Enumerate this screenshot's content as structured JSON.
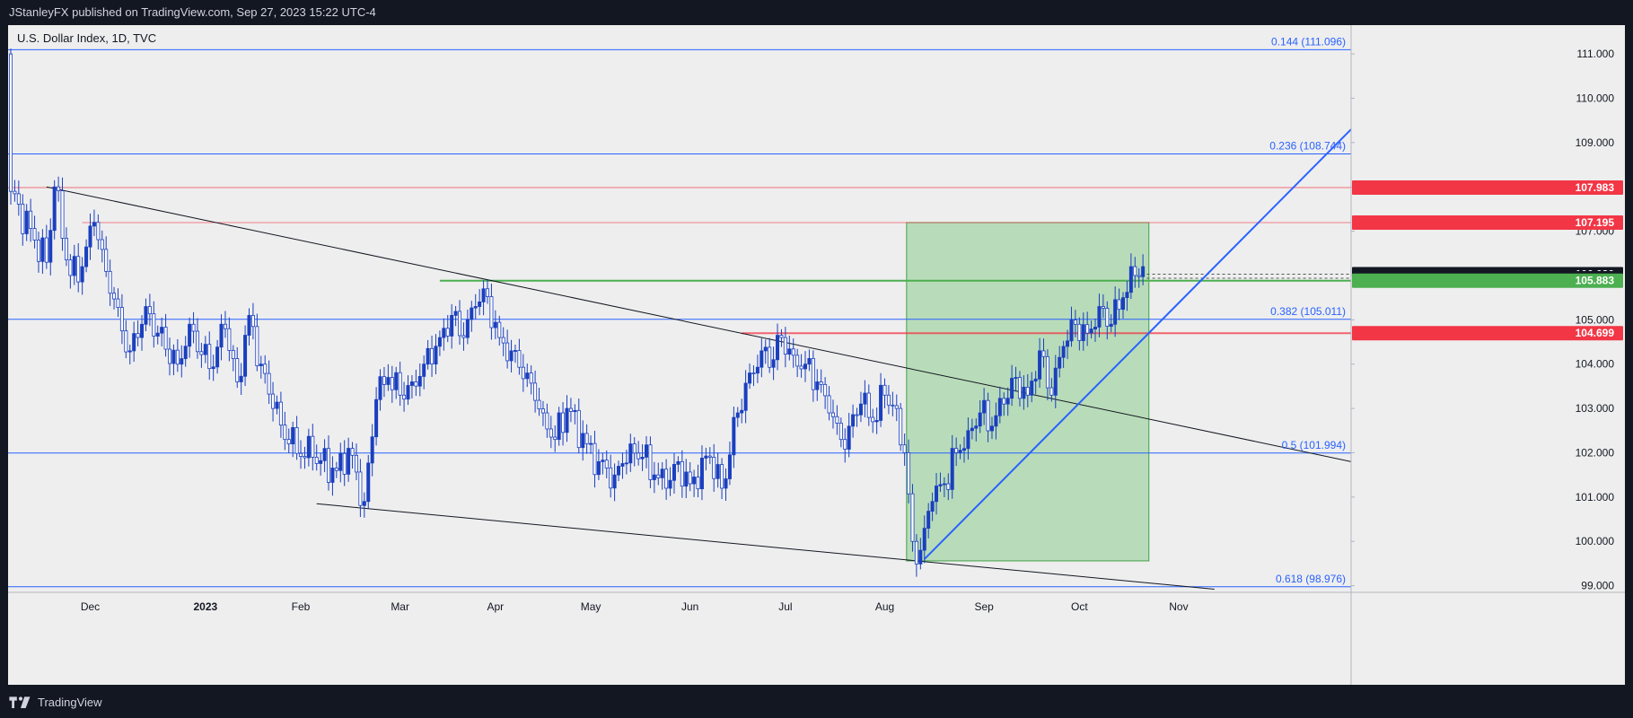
{
  "header": {
    "published": "JStanleyFX published on TradingView.com, Sep 27, 2023 15:22 UTC-4"
  },
  "chart": {
    "symbol": "U.S. Dollar Index, 1D, TVC"
  },
  "footer": {
    "brand": "TradingView"
  },
  "colors": {
    "bull": "#1a3fbf",
    "bear": "#ffffff",
    "fib": "#2962ff",
    "resistance": "#f23645",
    "support": "#089981",
    "box": "#a5d6a7"
  },
  "chart_data": {
    "type": "candlestick",
    "instrument": "U.S. Dollar Index",
    "timeframe": "1D",
    "ylim": [
      98.85,
      111.65
    ],
    "y_ticks": [
      "111.000",
      "110.000",
      "109.000",
      "108.000",
      "107.000",
      "106.000",
      "105.000",
      "104.000",
      "103.000",
      "102.000",
      "101.000",
      "100.000",
      "99.000"
    ],
    "x_ticks": [
      "Dec",
      "2023",
      "Feb",
      "Mar",
      "Apr",
      "May",
      "Jun",
      "Jul",
      "Aug",
      "Sep",
      "Oct",
      "Nov"
    ],
    "fib_levels": [
      {
        "label": "0.144 (111.096)",
        "value": 111.096
      },
      {
        "label": "0.236 (108.744)",
        "value": 108.744
      },
      {
        "label": "0.382 (105.011)",
        "value": 105.011
      },
      {
        "label": "0.5 (101.994)",
        "value": 101.994
      },
      {
        "label": "0.618 (98.976)",
        "value": 98.976
      }
    ],
    "price_tags": [
      {
        "label": "107.983",
        "value": 107.983,
        "style": "red"
      },
      {
        "label": "107.195",
        "value": 107.195,
        "style": "red"
      },
      {
        "label": "106.030",
        "value": 106.03,
        "style": "dark"
      },
      {
        "label": "105.938",
        "value": 105.938,
        "style": "dark"
      },
      {
        "label": "105.883",
        "value": 105.883,
        "style": "green"
      },
      {
        "label": "104.699",
        "value": 104.699,
        "style": "red"
      }
    ],
    "candle_anchors": [
      [
        0,
        111.0,
        107.9
      ],
      [
        6,
        106.8
      ],
      [
        9,
        106.3
      ],
      [
        11,
        108.0
      ],
      [
        15,
        106.0
      ],
      [
        18,
        106.2
      ],
      [
        21,
        107.2
      ],
      [
        25,
        105.6
      ],
      [
        30,
        104.3
      ],
      [
        34,
        105.3
      ],
      [
        37,
        104.7
      ],
      [
        42,
        104.0
      ],
      [
        45,
        104.9
      ],
      [
        50,
        103.9
      ],
      [
        54,
        104.8
      ],
      [
        57,
        103.6
      ],
      [
        60,
        105.1
      ],
      [
        63,
        104.0
      ],
      [
        66,
        103.0
      ],
      [
        70,
        102.2
      ],
      [
        76,
        101.9
      ],
      [
        82,
        101.6
      ],
      [
        85,
        102.1
      ],
      [
        89,
        100.9
      ],
      [
        92,
        103.2
      ],
      [
        95,
        103.7
      ],
      [
        98,
        103.3
      ],
      [
        101,
        103.6
      ],
      [
        104,
        104.0
      ],
      [
        108,
        104.6
      ],
      [
        111,
        105.1
      ],
      [
        114,
        104.6
      ],
      [
        117,
        105.3
      ],
      [
        119,
        105.7
      ],
      [
        123,
        104.6
      ],
      [
        126,
        104.3
      ],
      [
        130,
        103.8
      ],
      [
        134,
        102.9
      ],
      [
        137,
        102.3
      ],
      [
        140,
        103.0
      ],
      [
        145,
        102.2
      ],
      [
        148,
        101.8
      ],
      [
        152,
        101.5
      ],
      [
        156,
        102.2
      ],
      [
        159,
        101.9
      ],
      [
        162,
        101.5
      ],
      [
        165,
        101.2
      ],
      [
        168,
        101.8
      ],
      [
        171,
        101.3
      ],
      [
        176,
        101.9
      ],
      [
        179,
        101.2
      ],
      [
        183,
        102.9
      ],
      [
        186,
        103.8
      ],
      [
        189,
        104.3
      ],
      [
        192,
        104.1
      ],
      [
        194,
        104.6
      ],
      [
        197,
        104.2
      ],
      [
        200,
        104.0
      ],
      [
        203,
        103.6
      ],
      [
        206,
        102.9
      ],
      [
        209,
        102.3
      ],
      [
        211,
        102.6
      ],
      [
        214,
        103.1
      ],
      [
        217,
        102.7
      ],
      [
        220,
        103.3
      ],
      [
        223,
        103.0
      ],
      [
        225,
        102.0
      ],
      [
        227,
        100.0
      ],
      [
        229,
        99.8
      ],
      [
        232,
        100.9
      ],
      [
        235,
        101.3
      ],
      [
        238,
        102.0
      ],
      [
        241,
        102.5
      ],
      [
        244,
        102.9
      ],
      [
        247,
        102.6
      ],
      [
        250,
        103.1
      ],
      [
        253,
        103.7
      ],
      [
        256,
        103.3
      ],
      [
        259,
        104.3
      ],
      [
        262,
        103.3
      ],
      [
        265,
        104.4
      ],
      [
        268,
        104.9
      ],
      [
        271,
        104.7
      ],
      [
        274,
        105.3
      ],
      [
        277,
        104.9
      ],
      [
        280,
        105.5
      ],
      [
        283,
        106.0
      ],
      [
        285,
        106.2
      ]
    ]
  }
}
